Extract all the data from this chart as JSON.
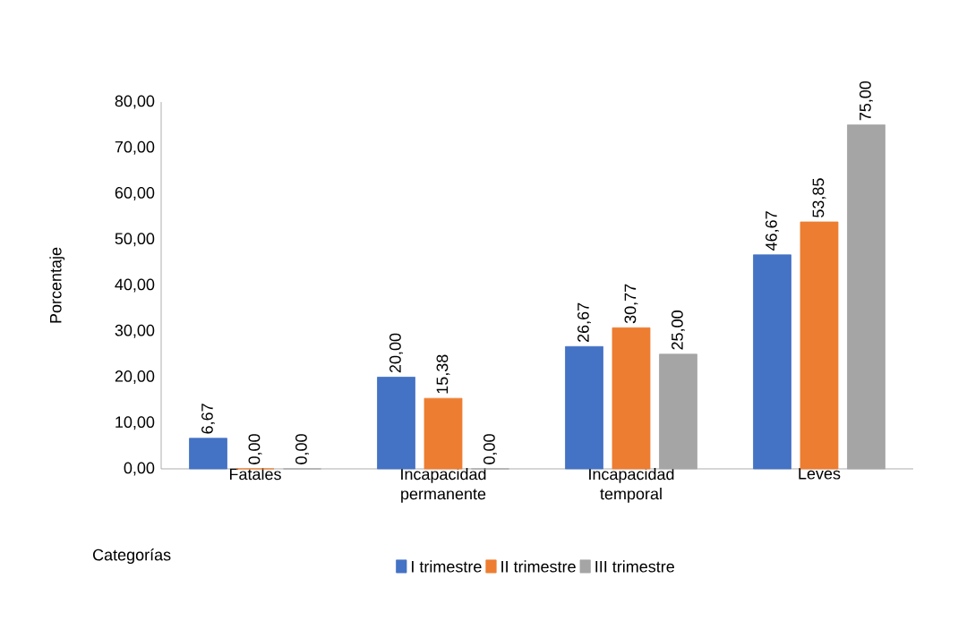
{
  "chart_data": {
    "type": "bar",
    "xlabel": "Categorías",
    "ylabel": "Porcentaje",
    "categories": [
      "Fatales",
      "Incapacidad permanente",
      "Incapacidad temporal",
      "Leves"
    ],
    "series": [
      {
        "name": "I trimestre",
        "color": "#4472c4",
        "values": [
          6.67,
          20.0,
          26.67,
          46.67
        ],
        "value_labels": [
          "6,67",
          "20,00",
          "26,67",
          "46,67"
        ]
      },
      {
        "name": "II trimestre",
        "color": "#ed7d31",
        "values": [
          0.0,
          15.38,
          30.77,
          53.85
        ],
        "value_labels": [
          "0,00",
          "15,38",
          "30,77",
          "53,85"
        ]
      },
      {
        "name": "III trimestre",
        "color": "#a5a5a5",
        "values": [
          0.0,
          0.0,
          25.0,
          75.0
        ],
        "value_labels": [
          "0,00",
          "0,00",
          "25,00",
          "75,00"
        ]
      }
    ],
    "ylim": [
      0,
      80
    ],
    "yticks": [
      {
        "value": 0,
        "label": "0,00"
      },
      {
        "value": 10,
        "label": "10,00"
      },
      {
        "value": 20,
        "label": "20,00"
      },
      {
        "value": 30,
        "label": "30,00"
      },
      {
        "value": 40,
        "label": "40,00"
      },
      {
        "value": 50,
        "label": "50,00"
      },
      {
        "value": 60,
        "label": "60,00"
      },
      {
        "value": 70,
        "label": "70,00"
      },
      {
        "value": 80,
        "label": "80,00"
      }
    ],
    "grid": false,
    "legend": "bottom"
  }
}
